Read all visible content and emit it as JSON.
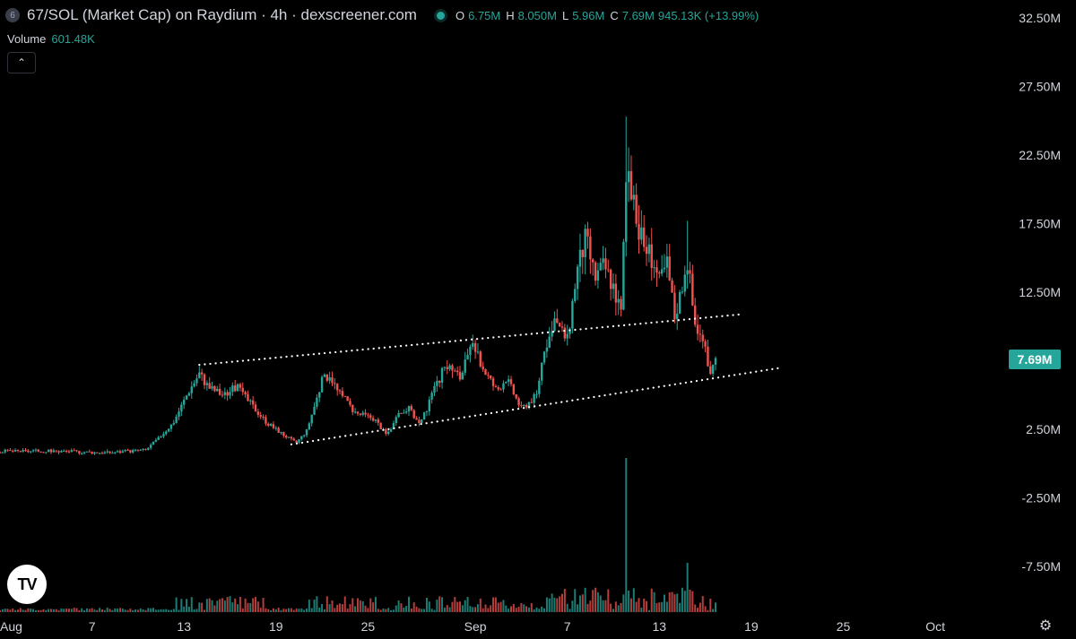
{
  "header": {
    "coin_icon_label": "6",
    "title": "67/SOL (Market Cap) on Raydium · 4h · dexscreener.com",
    "ohlc": {
      "o_label": "O",
      "o_value": "6.75M",
      "h_label": "H",
      "h_value": "8.050M",
      "l_label": "L",
      "l_value": "5.96M",
      "c_label": "C",
      "c_value": "7.69M",
      "change": "945.13K (+13.99%)"
    },
    "volume_label": "Volume",
    "volume_value": "601.48K"
  },
  "colors": {
    "up": "#26a69a",
    "down": "#ef5350",
    "background": "#000000",
    "text": "#d1d4dc"
  },
  "chart_data": {
    "type": "candlestick",
    "y_axis_ticks": [
      "32.50M",
      "27.50M",
      "22.50M",
      "17.50M",
      "12.50M",
      "7.50M",
      "2.50M",
      "-2.50M",
      "-7.50M"
    ],
    "y_axis_values": [
      32.5,
      27.5,
      22.5,
      17.5,
      12.5,
      7.5,
      2.5,
      -2.5,
      -7.5
    ],
    "x_axis_ticks": [
      "Aug",
      "7",
      "13",
      "19",
      "25",
      "Sep",
      "7",
      "13",
      "19",
      "25",
      "Oct"
    ],
    "x_axis_days": [
      1,
      7,
      13,
      19,
      25,
      32,
      38,
      44,
      50,
      56,
      62
    ],
    "ylim": [
      -10,
      34
    ],
    "last_price": 7.69,
    "last_price_label": "7.69M",
    "trendlines": [
      {
        "from": [
          14.0,
          7.2
        ],
        "to": [
          49.5,
          10.9
        ]
      },
      {
        "from": [
          20.0,
          1.4
        ],
        "to": [
          52.0,
          7.0
        ]
      }
    ],
    "price_path": [
      [
        -1,
        0.9
      ],
      [
        2,
        0.9
      ],
      [
        5,
        0.9
      ],
      [
        8,
        0.8
      ],
      [
        10.5,
        1.0
      ],
      [
        11.3,
        1.8
      ],
      [
        12.3,
        3.0
      ],
      [
        13.3,
        5.3
      ],
      [
        14.0,
        6.6
      ],
      [
        14.6,
        5.6
      ],
      [
        15.6,
        5.0
      ],
      [
        16.4,
        5.6
      ],
      [
        17.4,
        4.3
      ],
      [
        18.4,
        3.0
      ],
      [
        19.5,
        2.1
      ],
      [
        20.3,
        1.5
      ],
      [
        21.0,
        2.4
      ],
      [
        22.0,
        6.0
      ],
      [
        22.5,
        6.6
      ],
      [
        23.0,
        5.3
      ],
      [
        24.2,
        3.7
      ],
      [
        25.4,
        3.3
      ],
      [
        26.2,
        2.1
      ],
      [
        27.0,
        3.5
      ],
      [
        27.6,
        4.1
      ],
      [
        28.4,
        2.8
      ],
      [
        29.2,
        5.0
      ],
      [
        30.1,
        7.3
      ],
      [
        31.0,
        6.3
      ],
      [
        31.8,
        8.5
      ],
      [
        32.6,
        6.8
      ],
      [
        33.4,
        5.3
      ],
      [
        34.0,
        6.3
      ],
      [
        35.0,
        4.0
      ],
      [
        36.0,
        5.0
      ],
      [
        36.5,
        8.6
      ],
      [
        37.3,
        10.3
      ],
      [
        38.0,
        9.0
      ],
      [
        38.6,
        14.0
      ],
      [
        39.2,
        16.5
      ],
      [
        39.8,
        13.6
      ],
      [
        40.4,
        14.5
      ],
      [
        41.0,
        13.0
      ],
      [
        41.5,
        11.0
      ],
      [
        41.9,
        22.5
      ],
      [
        42.4,
        18.0
      ],
      [
        43.0,
        16.0
      ],
      [
        43.6,
        15.0
      ],
      [
        44.0,
        13.2
      ],
      [
        44.5,
        14.6
      ],
      [
        45.0,
        10.8
      ],
      [
        45.4,
        12.5
      ],
      [
        45.8,
        15.3
      ],
      [
        46.3,
        10.3
      ],
      [
        46.8,
        9.0
      ],
      [
        47.3,
        6.8
      ],
      [
        47.8,
        7.69
      ]
    ],
    "spikes": [
      {
        "x": 41.9,
        "high": 25.3
      },
      {
        "x": 45.8,
        "high": 17.7
      }
    ],
    "volume_spike_day": 41.9
  }
}
